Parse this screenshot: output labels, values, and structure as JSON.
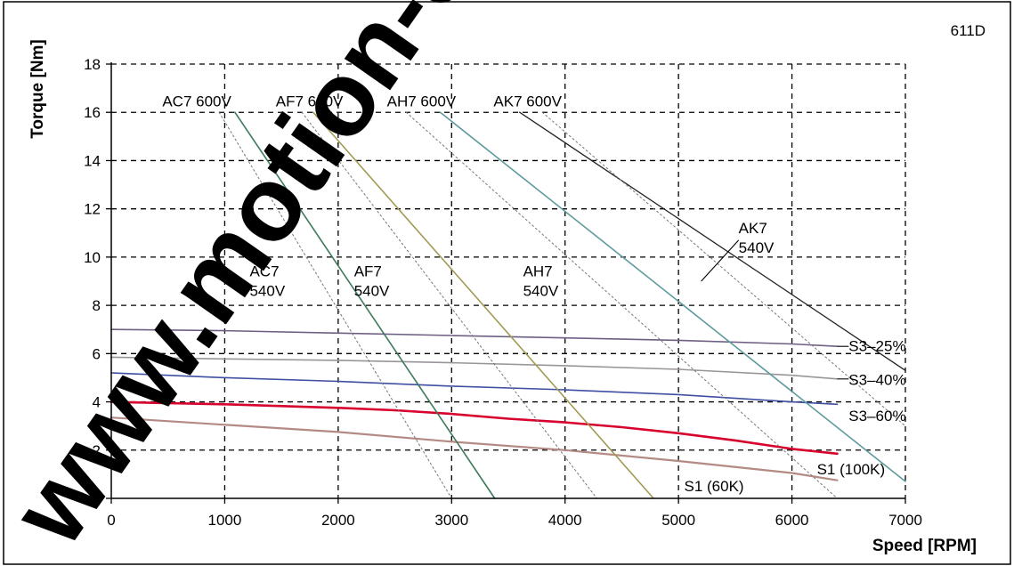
{
  "chart_data": {
    "type": "line",
    "corner_label": "611D",
    "xlabel": "Speed [RPM]",
    "ylabel": "Torque [Nm]",
    "xlim": [
      0,
      7000
    ],
    "ylim": [
      0,
      18
    ],
    "xticks": [
      0,
      1000,
      2000,
      3000,
      4000,
      5000,
      6000,
      7000
    ],
    "yticks": [
      0,
      2,
      4,
      6,
      8,
      10,
      12,
      14,
      16,
      18
    ],
    "grid": true,
    "watermark": "www.motion-e",
    "series": [
      {
        "name": "S3–25%",
        "color": "#6e5f83",
        "width": 1.6,
        "dash": "",
        "x": [
          0,
          1000,
          2000,
          3000,
          4000,
          5000,
          6000,
          6400
        ],
        "y": [
          7.0,
          6.95,
          6.85,
          6.75,
          6.65,
          6.55,
          6.4,
          6.3
        ]
      },
      {
        "name": "S3–40%",
        "color": "#9a949b",
        "width": 1.6,
        "dash": "",
        "x": [
          0,
          1000,
          2000,
          3000,
          4000,
          5000,
          6000,
          6400
        ],
        "y": [
          5.85,
          5.78,
          5.72,
          5.62,
          5.5,
          5.35,
          5.1,
          4.95
        ]
      },
      {
        "name": "S3–60%",
        "color": "#3f4fa3",
        "width": 1.6,
        "dash": "",
        "x": [
          0,
          1000,
          2000,
          3000,
          4000,
          5000,
          6000,
          6400
        ],
        "y": [
          5.2,
          5.0,
          4.85,
          4.65,
          4.5,
          4.3,
          4.0,
          3.9
        ]
      },
      {
        "name": "S1 (100K)",
        "color": "#d8002c",
        "width": 2.6,
        "dash": "",
        "x": [
          0,
          1000,
          2000,
          2500,
          3000,
          3500,
          4000,
          4500,
          5000,
          5500,
          6000,
          6400
        ],
        "y": [
          4.0,
          3.9,
          3.75,
          3.65,
          3.5,
          3.3,
          3.15,
          2.95,
          2.7,
          2.4,
          2.05,
          1.85
        ]
      },
      {
        "name": "S1 (60K)",
        "color": "#b48a84",
        "width": 2.2,
        "dash": "",
        "x": [
          0,
          1000,
          2000,
          3000,
          4000,
          5000,
          6000,
          6400
        ],
        "y": [
          3.35,
          3.05,
          2.75,
          2.35,
          2.0,
          1.55,
          1.05,
          0.75
        ]
      },
      {
        "name": "AC7 600V",
        "color": "#777777",
        "width": 1.0,
        "dash": "2,3",
        "x": [
          950,
          3000
        ],
        "y": [
          16.0,
          0.0
        ]
      },
      {
        "name": "AC7 540V",
        "color": "#3d7a5c",
        "width": 1.6,
        "dash": "",
        "x": [
          1090,
          3380
        ],
        "y": [
          16.0,
          0.0
        ]
      },
      {
        "name": "AF7 600V",
        "color": "#777777",
        "width": 1.0,
        "dash": "2,3",
        "x": [
          1680,
          4280
        ],
        "y": [
          16.0,
          0.0
        ]
      },
      {
        "name": "AF7 540V",
        "color": "#a29a52",
        "width": 1.6,
        "dash": "",
        "x": [
          1780,
          4780
        ],
        "y": [
          16.0,
          0.0
        ]
      },
      {
        "name": "AH7 600V",
        "color": "#777777",
        "width": 1.0,
        "dash": "2,3",
        "x": [
          2600,
          6400
        ],
        "y": [
          16.0,
          0.0
        ]
      },
      {
        "name": "AH7 540V",
        "color": "#5f9b9d",
        "width": 1.6,
        "dash": "",
        "x": [
          2900,
          7000
        ],
        "y": [
          16.0,
          0.7
        ]
      },
      {
        "name": "AK7 600V",
        "color": "#222222",
        "width": 1.3,
        "dash": "",
        "x": [
          3600,
          7000
        ],
        "y": [
          16.0,
          5.3
        ]
      },
      {
        "name": "AK7 540V",
        "color": "#777777",
        "width": 1.0,
        "dash": "2,3",
        "x": [
          3800,
          7000
        ],
        "y": [
          16.0,
          3.0
        ]
      }
    ],
    "annotations": [
      {
        "lines": [
          "AC7  600V"
        ],
        "x": 450,
        "y": 16.25,
        "anchor": "start"
      },
      {
        "lines": [
          "AF7  600V"
        ],
        "x": 1450,
        "y": 16.25,
        "anchor": "start"
      },
      {
        "lines": [
          "AH7  600V"
        ],
        "x": 2430,
        "y": 16.25,
        "anchor": "start"
      },
      {
        "lines": [
          "AK7  600V"
        ],
        "x": 3370,
        "y": 16.25,
        "anchor": "start"
      },
      {
        "lines": [
          "AK7",
          "540V"
        ],
        "x": 5530,
        "y": 11.0,
        "anchor": "start",
        "pointer": [
          5530,
          10.7,
          5200,
          9.0
        ]
      },
      {
        "lines": [
          "AC7",
          "540V"
        ],
        "x": 1220,
        "y": 9.2,
        "anchor": "start"
      },
      {
        "lines": [
          "AF7",
          "540V"
        ],
        "x": 2140,
        "y": 9.2,
        "anchor": "start"
      },
      {
        "lines": [
          "AH7",
          "540V"
        ],
        "x": 3630,
        "y": 9.2,
        "anchor": "start"
      },
      {
        "lines": [
          "S3–25%"
        ],
        "x": 6500,
        "y": 6.1,
        "anchor": "start",
        "pointer": [
          6400,
          6.3,
          6500,
          6.3
        ]
      },
      {
        "lines": [
          "S3–40%"
        ],
        "x": 6500,
        "y": 4.7,
        "anchor": "start",
        "pointer": [
          6400,
          4.95,
          6500,
          4.95
        ]
      },
      {
        "lines": [
          "S3–60%"
        ],
        "x": 6500,
        "y": 3.2,
        "anchor": "start"
      },
      {
        "lines": [
          "S1 (100K)"
        ],
        "x": 6220,
        "y": 1.0,
        "anchor": "start"
      },
      {
        "lines": [
          "S1 (60K)"
        ],
        "x": 5050,
        "y": 0.3,
        "anchor": "start"
      }
    ]
  }
}
